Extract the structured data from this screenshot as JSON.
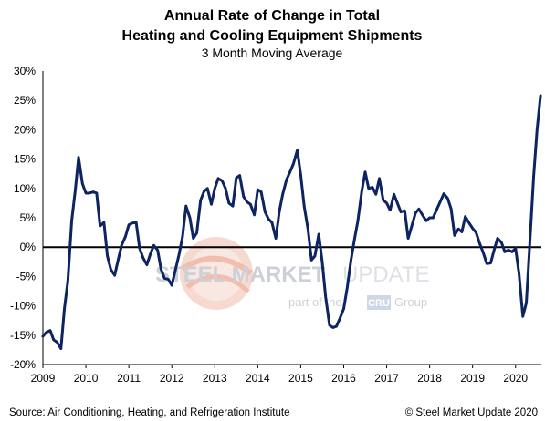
{
  "chart_data": {
    "type": "line",
    "title_line1": "Annual Rate of Change in Total",
    "title_line2": "Heating and Cooling Equipment Shipments",
    "subtitle": "3 Month Moving Average",
    "source": "Source: Air Conditioning, Heating, and Refrigeration Institute",
    "copyright": "© Steel Market Update 2020",
    "watermark": {
      "brand_bold": "STEEL MARKET",
      "brand_light": "UPDATE",
      "part_of": "part of the",
      "cru": "CRU",
      "group": "Group"
    },
    "ylim": [
      -20,
      30
    ],
    "ytick_values": [
      30,
      25,
      20,
      15,
      10,
      5,
      0,
      -5,
      -10,
      -15,
      -20
    ],
    "ytick_labels": [
      "30%",
      "25%",
      "20%",
      "15%",
      "10%",
      "5%",
      "0%",
      "-5%",
      "-10%",
      "-15%",
      "-20%"
    ],
    "xlim": [
      2009,
      2020.6
    ],
    "xtick_values": [
      2009,
      2010,
      2011,
      2012,
      2013,
      2014,
      2015,
      2016,
      2017,
      2018,
      2019,
      2020
    ],
    "xtick_labels": [
      "2009",
      "2010",
      "2011",
      "2012",
      "2013",
      "2014",
      "2015",
      "2016",
      "2017",
      "2018",
      "2019",
      "2020"
    ],
    "grid": false,
    "colors": {
      "line": "#0d2461",
      "zero_line": "#000000",
      "axis": "#000000"
    },
    "series": [
      {
        "x": [
          2009.0,
          2009.08,
          2009.17,
          2009.25,
          2009.33,
          2009.42,
          2009.5,
          2009.58,
          2009.67,
          2009.75,
          2009.83,
          2009.92,
          2010.0,
          2010.08,
          2010.17,
          2010.25,
          2010.33,
          2010.42,
          2010.5,
          2010.58,
          2010.67,
          2010.75,
          2010.83,
          2010.92,
          2011.0,
          2011.08,
          2011.17,
          2011.25,
          2011.33,
          2011.42,
          2011.5,
          2011.58,
          2011.67,
          2011.75,
          2011.83,
          2011.92,
          2012.0,
          2012.08,
          2012.17,
          2012.25,
          2012.33,
          2012.42,
          2012.5,
          2012.58,
          2012.67,
          2012.75,
          2012.83,
          2012.92,
          2013.0,
          2013.08,
          2013.17,
          2013.25,
          2013.33,
          2013.42,
          2013.5,
          2013.58,
          2013.67,
          2013.75,
          2013.83,
          2013.92,
          2014.0,
          2014.08,
          2014.17,
          2014.25,
          2014.33,
          2014.42,
          2014.5,
          2014.58,
          2014.67,
          2014.75,
          2014.83,
          2014.92,
          2015.0,
          2015.08,
          2015.17,
          2015.25,
          2015.33,
          2015.42,
          2015.5,
          2015.58,
          2015.67,
          2015.75,
          2015.83,
          2015.92,
          2016.0,
          2016.08,
          2016.17,
          2016.25,
          2016.33,
          2016.42,
          2016.5,
          2016.58,
          2016.67,
          2016.75,
          2016.83,
          2016.92,
          2017.0,
          2017.08,
          2017.17,
          2017.25,
          2017.33,
          2017.42,
          2017.5,
          2017.58,
          2017.67,
          2017.75,
          2017.83,
          2017.92,
          2018.0,
          2018.08,
          2018.17,
          2018.25,
          2018.33,
          2018.42,
          2018.5,
          2018.58,
          2018.67,
          2018.75,
          2018.83,
          2018.92,
          2019.0,
          2019.08,
          2019.17,
          2019.25,
          2019.33,
          2019.42,
          2019.5,
          2019.58,
          2019.67,
          2019.75,
          2019.83,
          2019.92,
          2020.0,
          2020.08,
          2020.17,
          2020.25,
          2020.33,
          2020.42,
          2020.5,
          2020.58
        ],
        "values": [
          -15.2,
          -14.5,
          -14.2,
          -15.8,
          -16.2,
          -17.3,
          -10.5,
          -5.8,
          4.5,
          9.5,
          15.3,
          10.8,
          9.2,
          9.2,
          9.4,
          9.2,
          3.6,
          4.2,
          -1.5,
          -3.8,
          -4.8,
          -2.2,
          0.3,
          1.8,
          3.8,
          4.1,
          4.2,
          -0.2,
          -1.8,
          -3.0,
          -1.2,
          0.3,
          -0.5,
          -3.8,
          -5.3,
          -5.5,
          -6.5,
          -4.0,
          -1.2,
          1.8,
          7.0,
          5.0,
          1.5,
          2.4,
          8.0,
          9.5,
          10.0,
          7.3,
          10.0,
          11.7,
          11.3,
          10.0,
          7.5,
          7.0,
          11.8,
          12.2,
          8.6,
          7.7,
          7.3,
          5.5,
          9.8,
          9.4,
          6.0,
          4.8,
          4.2,
          1.5,
          6.0,
          9.0,
          11.5,
          12.8,
          14.2,
          16.5,
          12.3,
          7.0,
          3.0,
          -2.2,
          -1.5,
          2.2,
          -2.5,
          -8.5,
          -13.3,
          -13.7,
          -13.5,
          -12.0,
          -10.5,
          -7.0,
          -2.2,
          1.3,
          4.5,
          9.5,
          12.8,
          10.0,
          10.2,
          9.0,
          11.7,
          8.0,
          7.5,
          6.3,
          9.0,
          7.5,
          6.0,
          6.2,
          1.5,
          3.5,
          5.8,
          6.5,
          5.5,
          4.5,
          5.0,
          5.0,
          6.5,
          7.8,
          9.1,
          8.3,
          6.5,
          2.0,
          3.1,
          2.6,
          5.2,
          4.1,
          3.2,
          2.5,
          0.5,
          -1.0,
          -2.8,
          -2.7,
          -0.5,
          1.5,
          0.8,
          -0.8,
          -0.5,
          -0.8,
          -0.2,
          -4.5,
          -11.8,
          -9.5,
          0.5,
          12.0,
          20.0,
          25.8
        ]
      }
    ]
  }
}
